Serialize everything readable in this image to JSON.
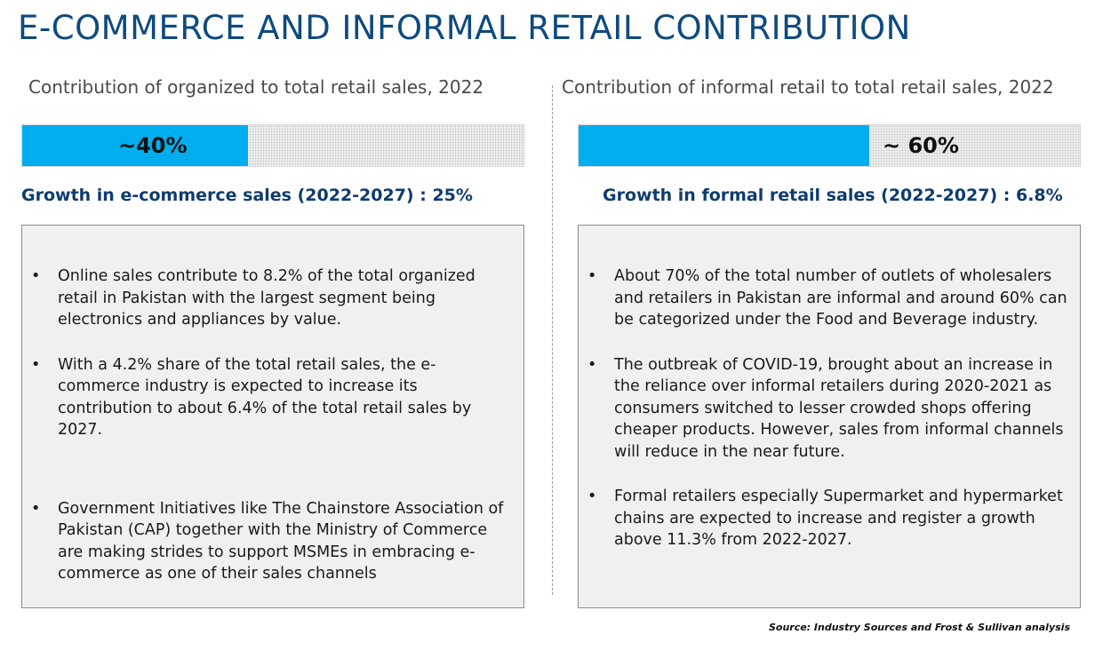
{
  "title": "E-COMMERCE AND INFORMAL RETAIL CONTRIBUTION",
  "colors": {
    "title": "#0e4a7e",
    "bar_fill": "#00aeef",
    "growth_heading": "#0e3c6e",
    "box_background": "#f0f0f0"
  },
  "left": {
    "subtitle": "Contribution of organized to total retail sales, 2022",
    "bar": {
      "label": "~40%",
      "value_fraction": 0.45
    },
    "growth_heading": "Growth in e-commerce sales (2022-2027) : 25%",
    "bullets": [
      "Online sales contribute to 8.2% of the total organized retail in Pakistan with the largest segment being electronics and appliances by value.",
      "With a 4.2% share of the total retail sales, the e-commerce industry is expected to increase its contribution to about 6.4% of the total retail sales by 2027.",
      "Government Initiatives like The Chainstore Association of Pakistan (CAP) together with the Ministry of Commerce are making strides to support MSMEs in embracing e-commerce as one of their sales channels"
    ]
  },
  "right": {
    "subtitle": "Contribution of informal retail to total retail sales, 2022",
    "bar": {
      "label": "~ 60%",
      "value_fraction": 0.58
    },
    "growth_heading": "Growth in formal retail sales (2022-2027) :  6.8%",
    "bullets": [
      "About 70% of the total number of outlets of wholesalers and retailers in Pakistan are informal and around 60% can be categorized under the Food and Beverage industry.",
      "The outbreak of COVID-19, brought about an increase in the reliance over informal retailers during 2020-2021 as consumers switched to lesser crowded shops offering cheaper products. However, sales from informal channels will reduce in the near future.",
      "Formal retailers especially Supermarket and hypermarket chains are expected to increase and register a growth above 11.3% from 2022-2027."
    ]
  },
  "bullet_symbol": "•",
  "source": "Source: Industry Sources and Frost & Sullivan analysis"
}
